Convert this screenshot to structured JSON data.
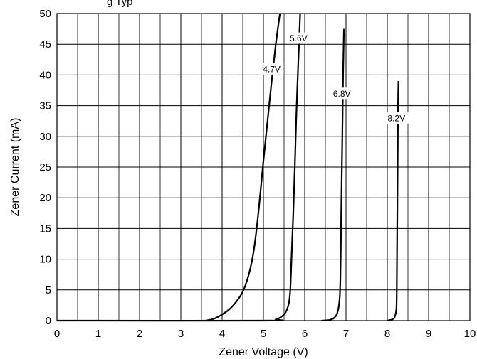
{
  "title_fragment": "g   Typ",
  "chart_data": {
    "type": "line",
    "xlabel": "Zener Voltage (V)",
    "ylabel": "Zener Current (mA)",
    "xlim": [
      0,
      10
    ],
    "ylim": [
      0,
      50
    ],
    "x_ticks": [
      "0",
      "1",
      "2",
      "3",
      "4",
      "5",
      "6",
      "7",
      "8",
      "9",
      "10"
    ],
    "y_ticks": [
      "0",
      "5",
      "10",
      "15",
      "20",
      "25",
      "30",
      "35",
      "40",
      "45",
      "50"
    ],
    "grid": "major and minor",
    "series": [
      {
        "name": "4.7V",
        "label_at": {
          "x": 5.2,
          "y": 41.0
        },
        "points": [
          [
            3.6,
            0
          ],
          [
            3.8,
            0.3
          ],
          [
            4.0,
            1.0
          ],
          [
            4.2,
            2.0
          ],
          [
            4.4,
            3.6
          ],
          [
            4.55,
            5.5
          ],
          [
            4.7,
            9.0
          ],
          [
            4.8,
            13.0
          ],
          [
            4.9,
            19.0
          ],
          [
            5.0,
            26.0
          ],
          [
            5.1,
            32.5
          ],
          [
            5.2,
            39.0
          ],
          [
            5.3,
            45.0
          ],
          [
            5.4,
            50.0
          ]
        ]
      },
      {
        "name": "5.6V",
        "label_at": {
          "x": 5.85,
          "y": 46.0
        },
        "points": [
          [
            0,
            0
          ],
          [
            5.0,
            0
          ],
          [
            5.3,
            0.2
          ],
          [
            5.45,
            0.7
          ],
          [
            5.55,
            1.5
          ],
          [
            5.62,
            3.0
          ],
          [
            5.65,
            5.0
          ],
          [
            5.68,
            10.0
          ],
          [
            5.72,
            17.0
          ],
          [
            5.76,
            25.0
          ],
          [
            5.8,
            34.0
          ],
          [
            5.85,
            43.0
          ],
          [
            5.89,
            50.0
          ]
        ]
      },
      {
        "name": "6.8V",
        "label_at": {
          "x": 6.9,
          "y": 37.0
        },
        "points": [
          [
            6.4,
            0
          ],
          [
            6.6,
            0.1
          ],
          [
            6.72,
            0.5
          ],
          [
            6.8,
            1.5
          ],
          [
            6.85,
            4.0
          ],
          [
            6.87,
            10.0
          ],
          [
            6.89,
            20.0
          ],
          [
            6.91,
            30.0
          ],
          [
            6.93,
            40.0
          ],
          [
            6.95,
            47.5
          ]
        ]
      },
      {
        "name": "8.2V",
        "label_at": {
          "x": 8.22,
          "y": 33.0
        },
        "points": [
          [
            8.0,
            0
          ],
          [
            8.12,
            0.2
          ],
          [
            8.18,
            0.6
          ],
          [
            8.22,
            2.0
          ],
          [
            8.23,
            5.0
          ],
          [
            8.24,
            15.0
          ],
          [
            8.25,
            25.0
          ],
          [
            8.26,
            35.0
          ],
          [
            8.27,
            39.0
          ]
        ]
      }
    ]
  }
}
